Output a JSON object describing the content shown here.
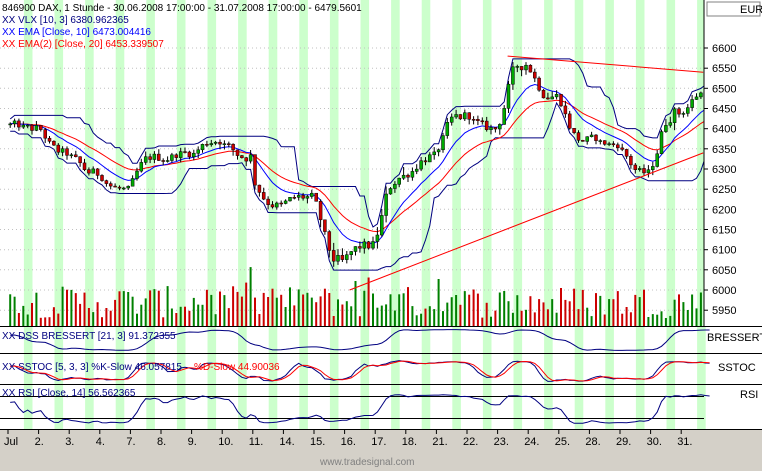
{
  "header": {
    "title": "846900  DAX, 1 Stunde - 30.06.2008 17:00:00 - 31.07.2008 17:00:00 - 6479.5601",
    "legend_vlx": "XX VLX [10, 3] 6380.962365",
    "legend_ema10": "XX EMA [Close, 10] 6473.004416",
    "legend_ema20": "XX EMA(2) [Close, 20] 6453.339507"
  },
  "currency_label": "EUR",
  "watermark": "www.tradesignal.com",
  "panels": {
    "dss": {
      "legend": "XX DSS BRESSERT [21, 3] 91.372355",
      "axis_label": "BRESSERT"
    },
    "sstoc": {
      "legend_k": "XX SSTOC [5, 3, 3] %K-Slow 46.057815",
      "legend_d": "%D-Slow 44.90036",
      "axis_label": "SSTOC"
    },
    "rsi": {
      "legend": "XX RSI [Close, 14] 56.562365",
      "axis_label": "RSI"
    }
  },
  "colors": {
    "band": "#ccffcc",
    "up": "#00aa00",
    "down": "#cc0000",
    "ema10": "#0000ff",
    "ema20": "#ff0000",
    "vlx": "#000080",
    "trend": "#ff0000",
    "volume_up": "#008000",
    "volume_down": "#cc0000"
  },
  "chart_data": {
    "type": "candlestick",
    "x_tick_labels": [
      "Jul",
      "2.",
      "3.",
      "4.",
      "7.",
      "8.",
      "9.",
      "10.",
      "11.",
      "14.",
      "15.",
      "16.",
      "17.",
      "18.",
      "21.",
      "22.",
      "23.",
      "24.",
      "25.",
      "28.",
      "29.",
      "30.",
      "31."
    ],
    "y_tick_labels": [
      "6600",
      "6550",
      "6500",
      "6450",
      "6400",
      "6350",
      "6300",
      "6250",
      "6200",
      "6150",
      "6100",
      "6050",
      "6000",
      "5950"
    ],
    "ylim": [
      5940,
      6610
    ],
    "daily_close": [
      6400,
      6340,
      6290,
      6250,
      6330,
      6340,
      6370,
      6330,
      6210,
      6230,
      6070,
      6110,
      6280,
      6330,
      6430,
      6400,
      6560,
      6480,
      6370,
      6360,
      6290,
      6440,
      6490
    ],
    "daily_low": [
      6300,
      6280,
      6220,
      6230,
      6260,
      6290,
      6300,
      6250,
      6150,
      6120,
      6040,
      6010,
      6090,
      6240,
      6300,
      6350,
      6390,
      6440,
      6330,
      6330,
      6270,
      6290,
      6420
    ],
    "daily_high": [
      6420,
      6400,
      6350,
      6320,
      6380,
      6400,
      6420,
      6400,
      6260,
      6250,
      6220,
      6150,
      6300,
      6380,
      6450,
      6470,
      6560,
      6580,
      6470,
      6420,
      6380,
      6470,
      6530
    ],
    "trendline_support": [
      [
        "16.",
        6000
      ],
      [
        "31.",
        6340
      ]
    ],
    "trendline_resistance": [
      [
        "23.",
        6580
      ],
      [
        "31.",
        6540
      ]
    ]
  }
}
